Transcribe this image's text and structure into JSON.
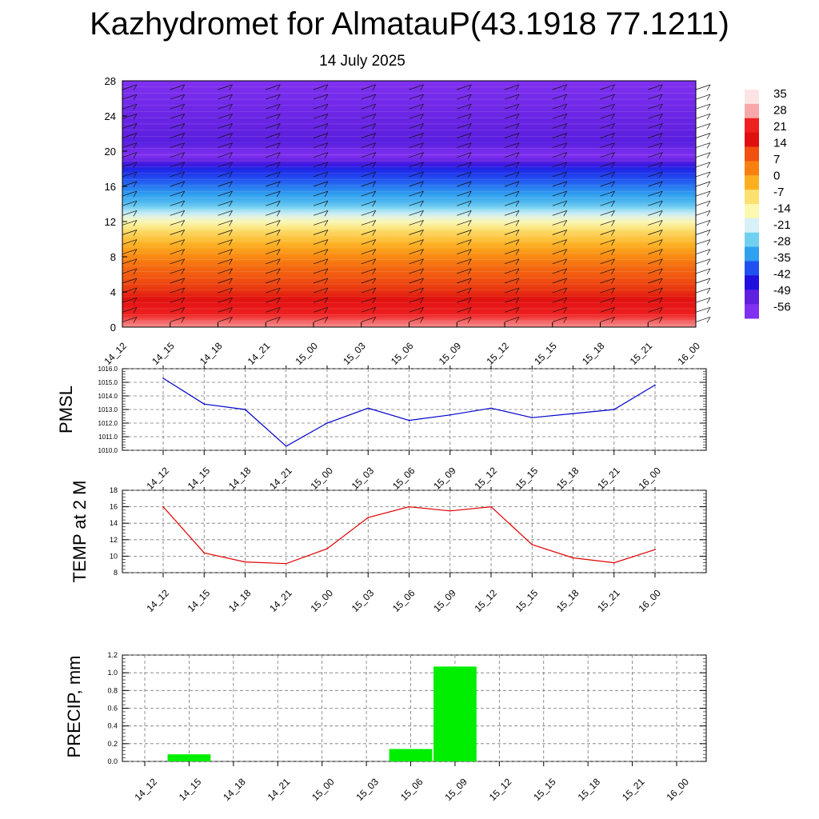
{
  "title": "Kazhydromet for AlmatauP(43.1918 77.1211)",
  "subtitle": "14 July 2025",
  "chart_data": [
    {
      "type": "heatmap",
      "name": "temperature-cross-section",
      "ylim": [
        0,
        28
      ],
      "yticks": [
        "0",
        "4",
        "8",
        "12",
        "16",
        "20",
        "24",
        "28"
      ],
      "xticks": [
        "14_12",
        "14_15",
        "14_18",
        "14_21",
        "15_00",
        "15_03",
        "15_06",
        "15_09",
        "15_12",
        "15_15",
        "15_18",
        "15_21",
        "16_00"
      ],
      "colorbar": {
        "labels": [
          "35",
          "28",
          "21",
          "14",
          "7",
          "0",
          "-7",
          "-14",
          "-21",
          "-28",
          "-35",
          "-42",
          "-49",
          "-56"
        ],
        "colors": [
          "#fce4e4",
          "#f8a8a8",
          "#ee2020",
          "#e01010",
          "#f05010",
          "#f88010",
          "#fcb020",
          "#fce070",
          "#fcf8b0",
          "#d8f0f8",
          "#70d0f0",
          "#30a0f0",
          "#2050f0",
          "#2010e0",
          "#6020e0",
          "#8030f0"
        ]
      },
      "temperature_profile": [
        {
          "level": 0,
          "value": 28
        },
        {
          "level": 2,
          "value": 21
        },
        {
          "level": 4,
          "value": 14
        },
        {
          "level": 7,
          "value": 7
        },
        {
          "level": 9,
          "value": 0
        },
        {
          "level": 11,
          "value": -7
        },
        {
          "level": 12,
          "value": -14
        },
        {
          "level": 14,
          "value": -28
        },
        {
          "level": 16,
          "value": -35
        },
        {
          "level": 18,
          "value": -42
        },
        {
          "level": 19.5,
          "value": -56
        },
        {
          "level": 21,
          "value": -49
        },
        {
          "level": 28,
          "value": -56
        }
      ],
      "wind_barbs": true
    },
    {
      "type": "line",
      "name": "pmsl",
      "ylabel": "PMSL",
      "ylim": [
        1010.0,
        1016.0
      ],
      "yticks": [
        "1010.0",
        "1011.0",
        "1012.0",
        "1013.0",
        "1014.0",
        "1015.0",
        "1016.0"
      ],
      "categories": [
        "14_12",
        "14_15",
        "14_18",
        "14_21",
        "15_00",
        "15_03",
        "15_06",
        "15_09",
        "15_12",
        "15_15",
        "15_18",
        "15_21",
        "16_00"
      ],
      "values": [
        1015.3,
        1013.4,
        1013.0,
        1010.3,
        1012.0,
        1013.1,
        1012.2,
        1012.6,
        1013.1,
        1012.4,
        1012.7,
        1013.0,
        1014.8
      ],
      "color": "#0000cc",
      "grid": true
    },
    {
      "type": "line",
      "name": "temp-2m",
      "ylabel": "TEMP at 2 M",
      "ylim": [
        8,
        18
      ],
      "yticks": [
        "8",
        "10",
        "12",
        "14",
        "16",
        "18"
      ],
      "categories": [
        "14_12",
        "14_15",
        "14_18",
        "14_21",
        "15_00",
        "15_03",
        "15_06",
        "15_09",
        "15_12",
        "15_15",
        "15_18",
        "15_21",
        "16_00"
      ],
      "values": [
        16.0,
        10.4,
        9.3,
        9.1,
        10.9,
        14.7,
        16.0,
        15.5,
        16.0,
        11.4,
        9.8,
        9.2,
        10.8
      ],
      "color": "#e00000",
      "grid": true
    },
    {
      "type": "bar",
      "name": "precip",
      "ylabel": "PRECIP, mm",
      "ylim": [
        0.0,
        1.2
      ],
      "yticks": [
        "0.0",
        "0.2",
        "0.4",
        "0.6",
        "0.8",
        "1.0",
        "1.2"
      ],
      "categories": [
        "14_12",
        "14_15",
        "14_18",
        "14_21",
        "15_00",
        "15_03",
        "15_06",
        "15_09",
        "15_12",
        "15_15",
        "15_18",
        "15_21",
        "16_00"
      ],
      "values": [
        0,
        0.08,
        0,
        0,
        0,
        0,
        0.14,
        1.07,
        0,
        0,
        0,
        0,
        0
      ],
      "color": "#00ee00",
      "grid": true
    }
  ]
}
